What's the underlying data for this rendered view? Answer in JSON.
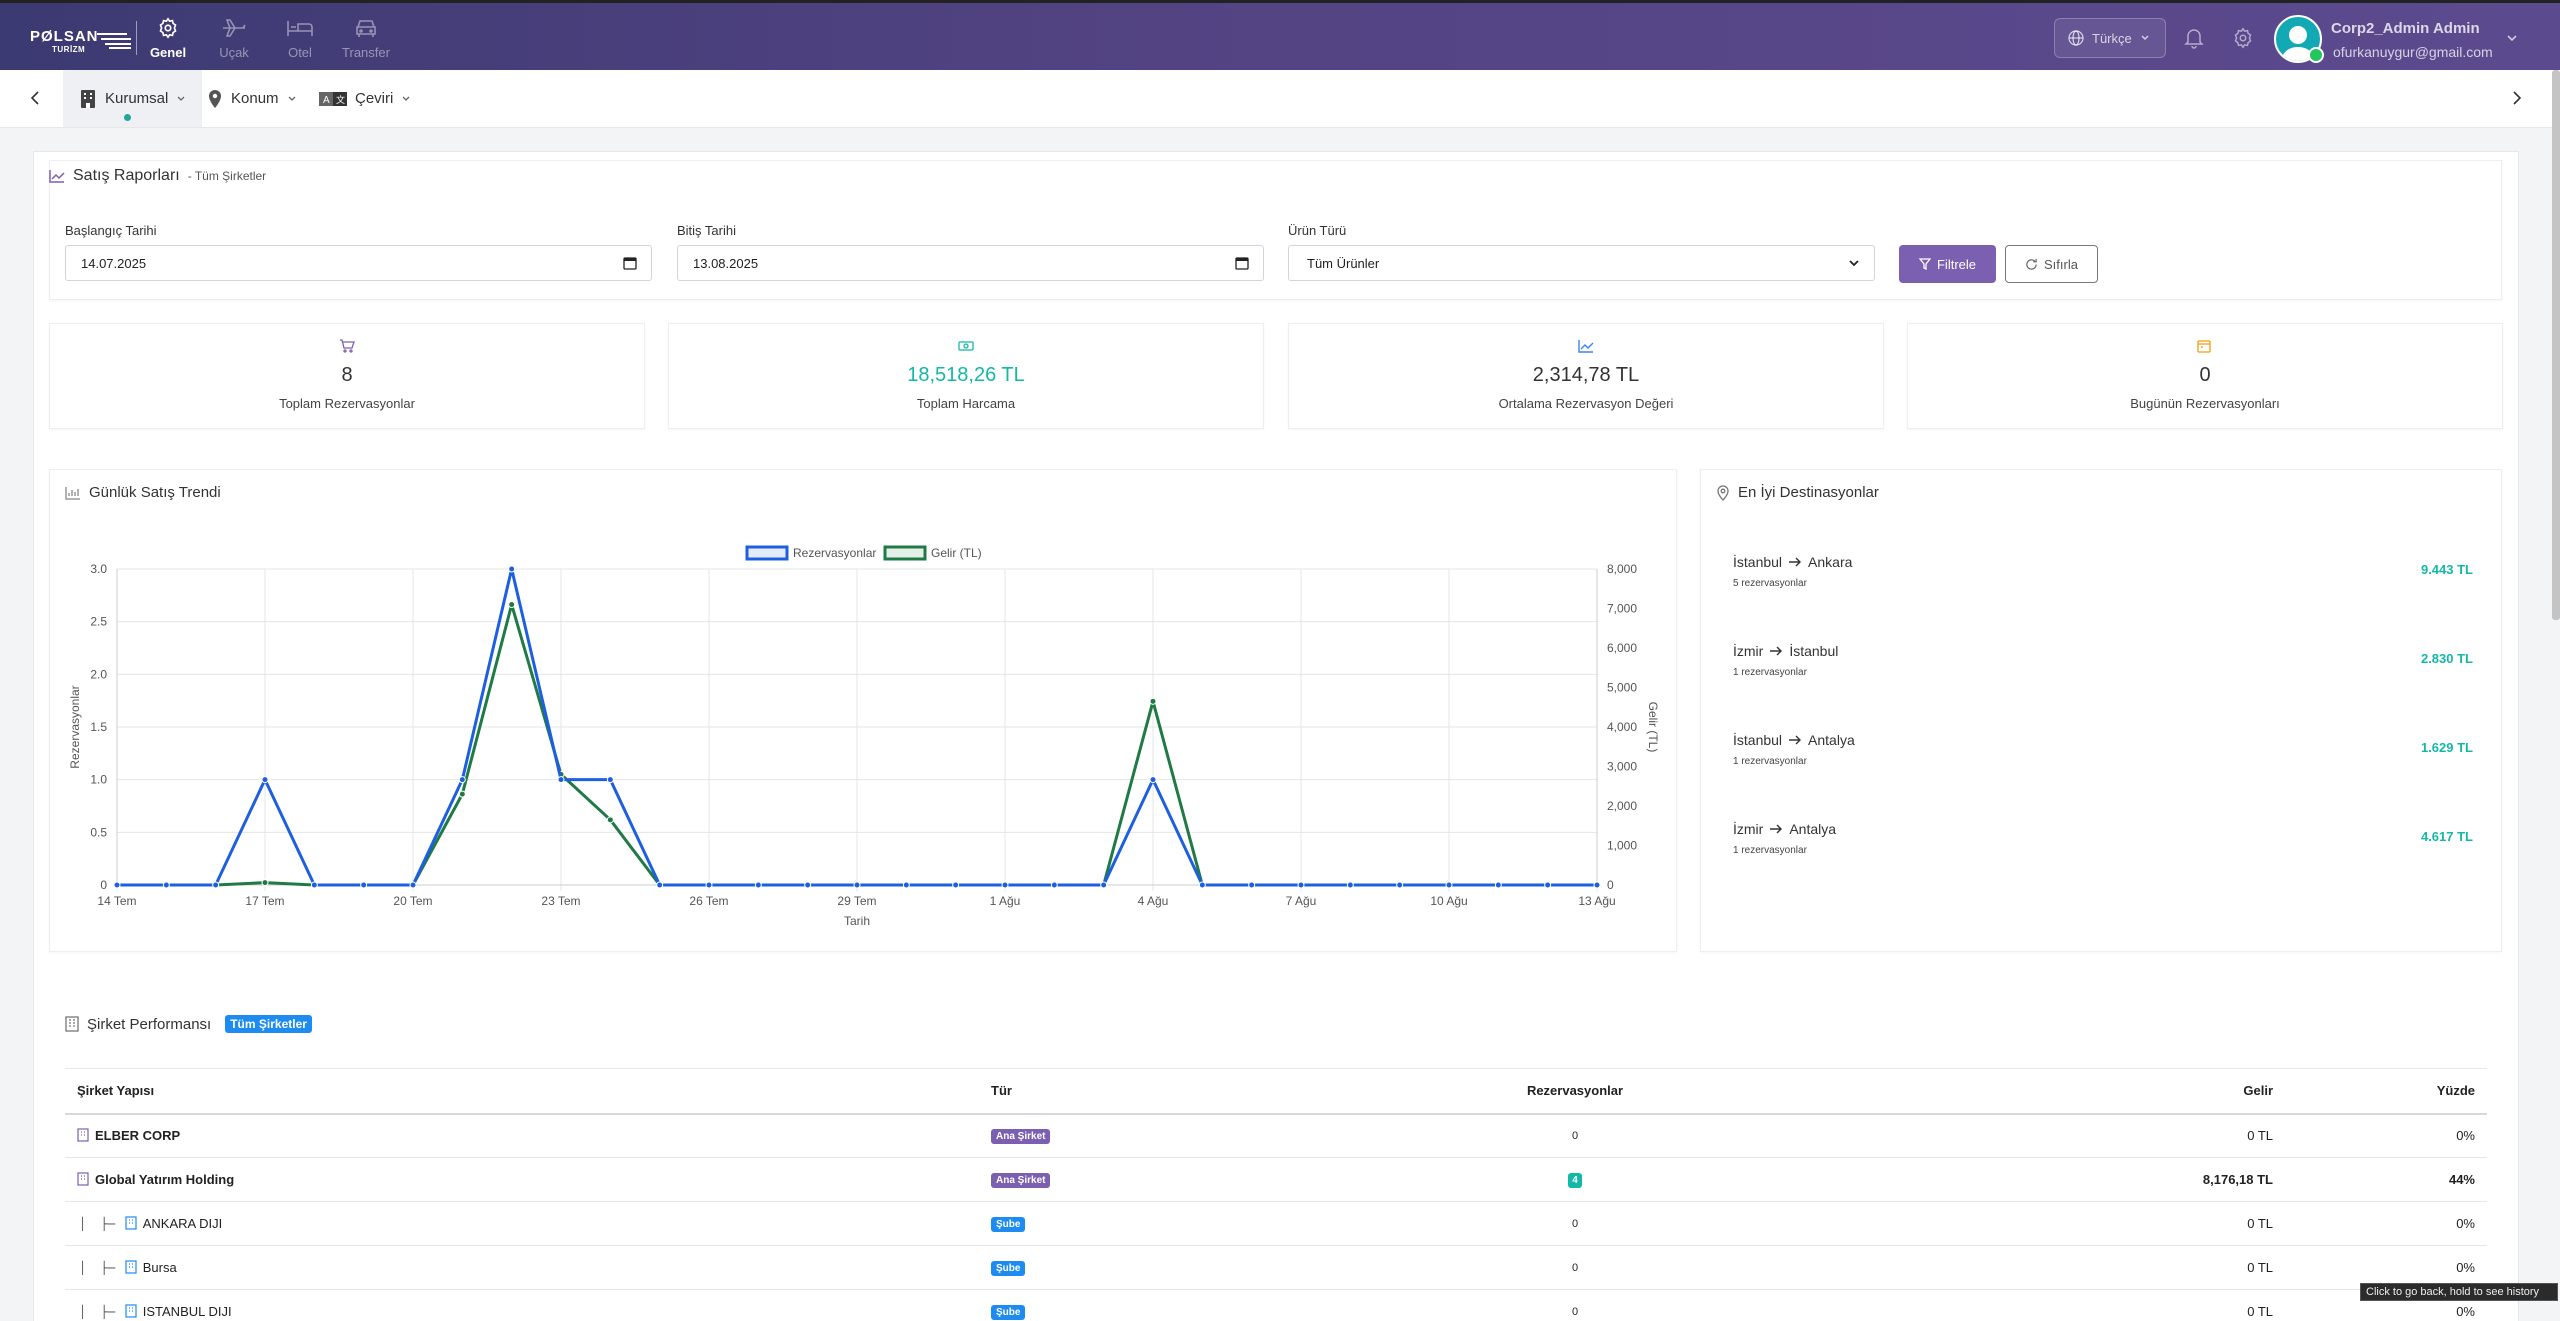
{
  "brand": {
    "name": "PØLSAN",
    "sub": "TURİZM"
  },
  "nav": [
    {
      "label": "Genel",
      "icon": "gear-icon",
      "active": true
    },
    {
      "label": "Uçak",
      "icon": "plane-icon",
      "active": false
    },
    {
      "label": "Otel",
      "icon": "bed-icon",
      "active": false
    },
    {
      "label": "Transfer",
      "icon": "car-icon",
      "active": false
    }
  ],
  "header": {
    "language": "Türkçe",
    "user_name": "Corp2_Admin Admin",
    "user_email": "ofurkanuygur@gmail.com"
  },
  "subnav": [
    {
      "label": "Kurumsal",
      "icon": "building-icon"
    },
    {
      "label": "Konum",
      "icon": "map-pin-icon"
    },
    {
      "label": "Çeviri",
      "icon": "translate-icon"
    }
  ],
  "report": {
    "title": "Satış Raporları",
    "subtitle": "- Tüm Şirketler"
  },
  "filters": {
    "start_label": "Başlangıç Tarihi",
    "start_value": "14.07.2025",
    "end_label": "Bitiş Tarihi",
    "end_value": "13.08.2025",
    "product_label": "Ürün Türü",
    "product_value": "Tüm Ürünler",
    "filter_button": "Filtrele",
    "reset_button": "Sıfırla"
  },
  "stats": [
    {
      "value": "8",
      "label": "Toplam Rezervasyonlar",
      "icon": "cart-icon",
      "color": "#7b5fb0"
    },
    {
      "value": "18,518,26 TL",
      "label": "Toplam Harcama",
      "icon": "money-icon",
      "color": "#14b8a6"
    },
    {
      "value": "2,314,78 TL",
      "label": "Ortalama Rezervasyon Değeri",
      "icon": "trend-icon",
      "color": "#3b82f6"
    },
    {
      "value": "0",
      "label": "Bugünün Rezervasyonları",
      "icon": "calendar-icon",
      "color": "#f59e0b"
    }
  ],
  "trend": {
    "title": "Günlük Satış Trendi"
  },
  "chart_data": {
    "type": "line",
    "x": [
      "14 Tem",
      "15 Tem",
      "16 Tem",
      "17 Tem",
      "18 Tem",
      "19 Tem",
      "20 Tem",
      "21 Tem",
      "22 Tem",
      "23 Tem",
      "24 Tem",
      "25 Tem",
      "26 Tem",
      "27 Tem",
      "28 Tem",
      "29 Tem",
      "30 Tem",
      "31 Tem",
      "1 Ağu",
      "2 Ağu",
      "3 Ağu",
      "4 Ağu",
      "5 Ağu",
      "6 Ağu",
      "7 Ağu",
      "8 Ağu",
      "9 Ağu",
      "10 Ağu",
      "11 Ağu",
      "12 Ağu",
      "13 Ağu"
    ],
    "xticks": [
      "14 Tem",
      "17 Tem",
      "20 Tem",
      "23 Tem",
      "26 Tem",
      "29 Tem",
      "1 Ağu",
      "4 Ağu",
      "7 Ağu",
      "10 Ağu",
      "13 Ağu"
    ],
    "xlabel": "Tarih",
    "ylabel": "Rezervasyonlar",
    "y2label": "Gelir (TL)",
    "ylim": [
      0,
      3
    ],
    "y2lim": [
      0,
      8000
    ],
    "yticks": [
      "0",
      "0.5",
      "1.0",
      "1.5",
      "2.0",
      "2.5",
      "3.0"
    ],
    "y2ticks": [
      "0",
      "1,000",
      "2,000",
      "3,000",
      "4,000",
      "5,000",
      "6,000",
      "7,000",
      "8,000"
    ],
    "legend": "top-center",
    "grid": true,
    "series": [
      {
        "name": "Rezervasyonlar",
        "axis": "left",
        "color": "#1d5fe0",
        "values": [
          0,
          0,
          0,
          1,
          0,
          0,
          0,
          1,
          3,
          1,
          1,
          0,
          0,
          0,
          0,
          0,
          0,
          0,
          0,
          0,
          0,
          1,
          0,
          0,
          0,
          0,
          0,
          0,
          0,
          0,
          0
        ]
      },
      {
        "name": "Gelir (TL)",
        "axis": "right",
        "color": "#1f7a45",
        "values": [
          0,
          0,
          0,
          60,
          0,
          0,
          0,
          2300,
          7100,
          2800,
          1650,
          0,
          0,
          0,
          0,
          0,
          0,
          0,
          0,
          0,
          0,
          4650,
          0,
          0,
          0,
          0,
          0,
          0,
          0,
          0,
          0
        ]
      }
    ]
  },
  "destinations": {
    "title": "En İyi Destinasyonlar",
    "items": [
      {
        "from": "İstanbul",
        "to": "Ankara",
        "count": "5 rezervasyonlar",
        "amount": "9.443 TL"
      },
      {
        "from": "İzmir",
        "to": "İstanbul",
        "count": "1 rezervasyonlar",
        "amount": "2.830 TL"
      },
      {
        "from": "İstanbul",
        "to": "Antalya",
        "count": "1 rezervasyonlar",
        "amount": "1.629 TL"
      },
      {
        "from": "İzmir",
        "to": "Antalya",
        "count": "1 rezervasyonlar",
        "amount": "4.617 TL"
      }
    ]
  },
  "performance": {
    "title": "Şirket Performansı",
    "badge": "Tüm Şirketler",
    "columns": [
      "Şirket Yapısı",
      "Tür",
      "Rezervasyonlar",
      "Gelir",
      "Yüzde"
    ],
    "rows": [
      {
        "name": "ELBER CORP",
        "type": "Ana Şirket",
        "reservations": "0",
        "revenue": "0 TL",
        "percent": "0%"
      },
      {
        "name": "Global Yatırım Holding",
        "type": "Ana Şirket",
        "reservations": "4",
        "revenue": "8,176,18 TL",
        "percent": "44%"
      },
      {
        "name": "ANKARA DIJI",
        "type": "Şube",
        "reservations": "0",
        "revenue": "0 TL",
        "percent": "0%"
      },
      {
        "name": "Bursa",
        "type": "Şube",
        "reservations": "0",
        "revenue": "0 TL",
        "percent": "0%"
      },
      {
        "name": "ISTANBUL DIJI",
        "type": "Şube",
        "reservations": "0",
        "revenue": "0 TL",
        "percent": "0%"
      }
    ]
  },
  "tooltip": "Click to go back, hold to see history"
}
